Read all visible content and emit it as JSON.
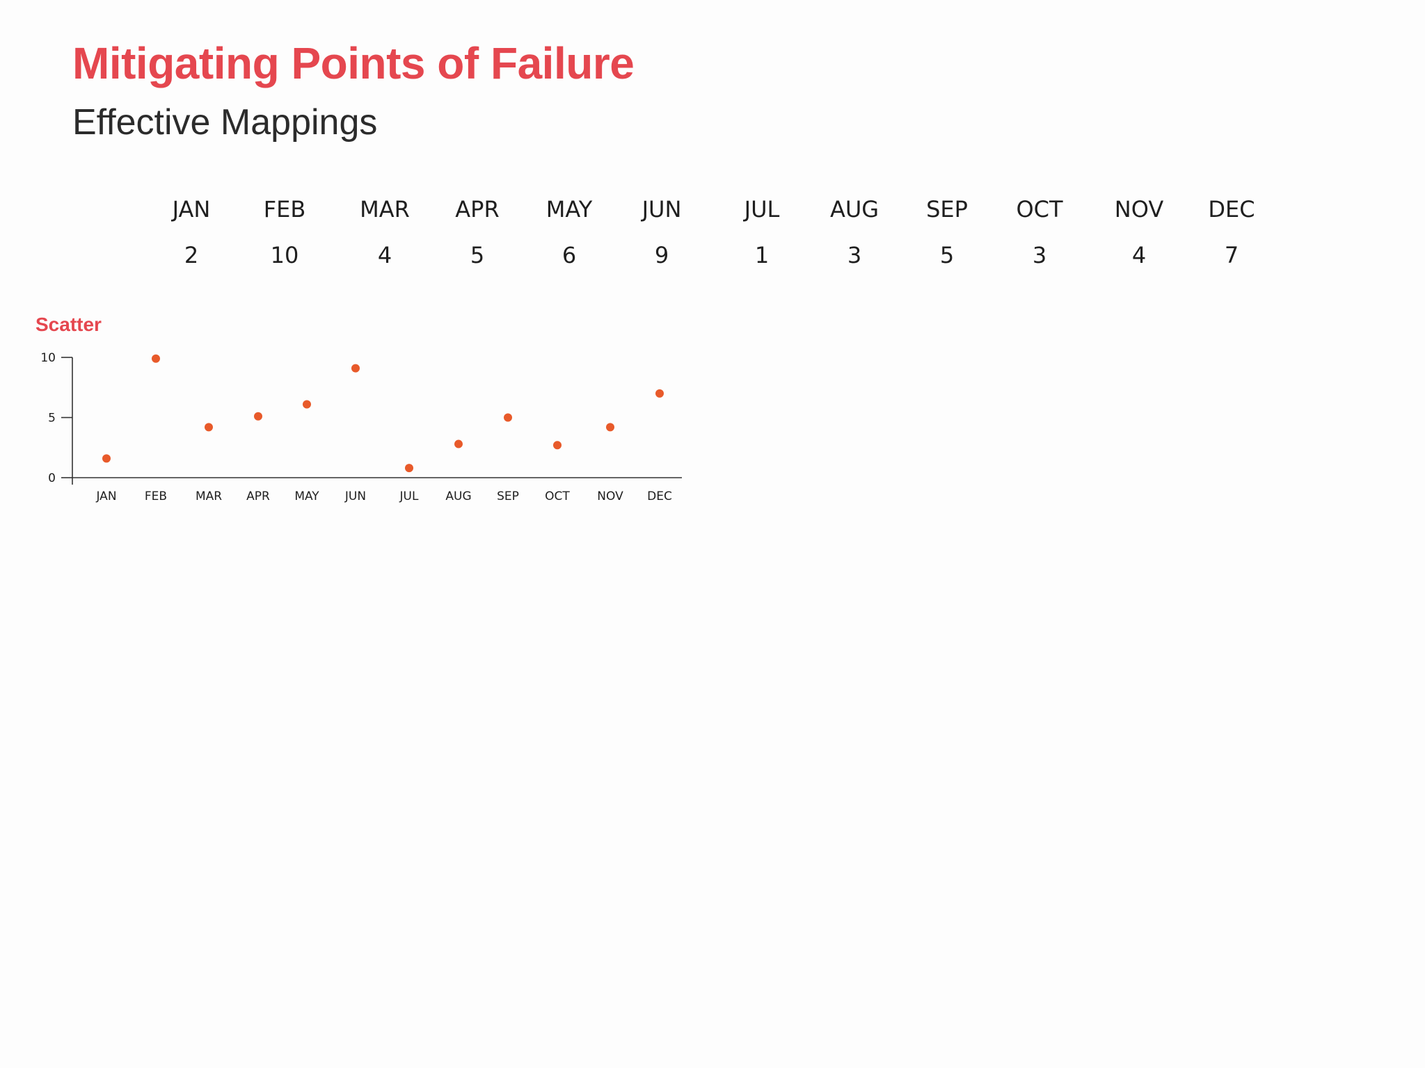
{
  "title": "Mitigating Points of Failure",
  "subtitle": "Effective Mappings",
  "colors": {
    "accent": "#e5474f",
    "point": "#e85a2a",
    "text": "#1f1f1f"
  },
  "mapping": [
    {
      "month": "JAN",
      "value": "2"
    },
    {
      "month": "FEB",
      "value": "10"
    },
    {
      "month": "MAR",
      "value": "4"
    },
    {
      "month": "APR",
      "value": "5"
    },
    {
      "month": "MAY",
      "value": "6"
    },
    {
      "month": "JUN",
      "value": "9"
    },
    {
      "month": "JUL",
      "value": "1"
    },
    {
      "month": "AUG",
      "value": "3"
    },
    {
      "month": "SEP",
      "value": "5"
    },
    {
      "month": "OCT",
      "value": "3"
    },
    {
      "month": "NOV",
      "value": "4"
    },
    {
      "month": "DEC",
      "value": "7"
    }
  ],
  "chart_data": {
    "type": "scatter",
    "title": "Scatter",
    "categories": [
      "JAN",
      "FEB",
      "MAR",
      "APR",
      "MAY",
      "JUN",
      "JUL",
      "AUG",
      "SEP",
      "OCT",
      "NOV",
      "DEC"
    ],
    "values": [
      1.6,
      9.9,
      4.2,
      5.1,
      6.1,
      9.1,
      0.8,
      2.8,
      5.0,
      2.7,
      4.2,
      7.0
    ],
    "yticks": [
      0,
      5,
      10
    ],
    "ylim": [
      0,
      10
    ],
    "xlabel": "",
    "ylabel": "",
    "grid": false
  }
}
